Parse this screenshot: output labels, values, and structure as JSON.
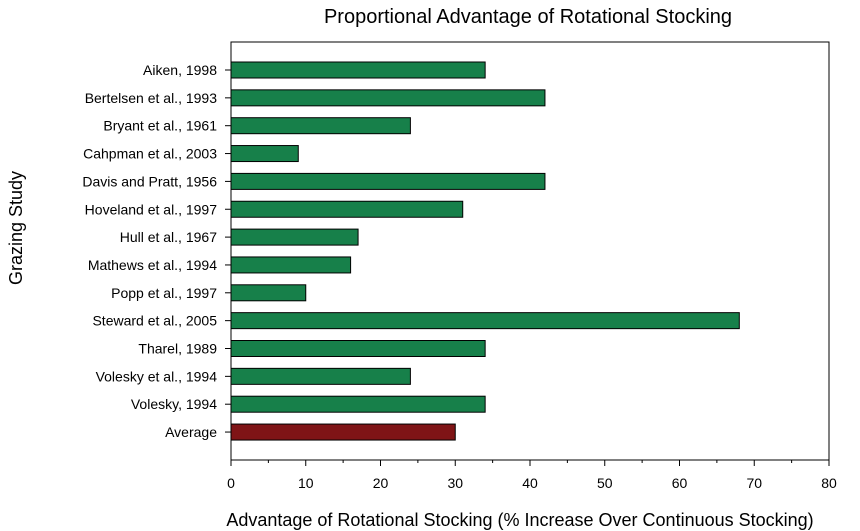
{
  "chart_data": {
    "type": "bar",
    "orientation": "horizontal",
    "title": "Proportional Advantage of Rotational Stocking",
    "xlabel": "Advantage of Rotational Stocking (% Increase Over Continuous Stocking)",
    "ylabel": "Grazing Study",
    "xlim": [
      0,
      80
    ],
    "xticks": [
      "0",
      "10",
      "20",
      "30",
      "40",
      "50",
      "60",
      "70",
      "80"
    ],
    "grid": false,
    "legend": "none",
    "categories": [
      "Aiken, 1998",
      "Bertelsen et al., 1993",
      "Bryant et al., 1961",
      "Cahpman et al., 2003",
      "Davis and Pratt, 1956",
      "Hoveland et al., 1997",
      "Hull et al., 1967",
      "Mathews et al., 1994",
      "Popp et al., 1997",
      "Steward et al., 2005",
      "Tharel, 1989",
      "Volesky et al., 1994",
      "Volesky, 1994",
      "Average"
    ],
    "values": [
      34,
      42,
      24,
      9,
      42,
      31,
      17,
      16,
      10,
      68,
      34,
      24,
      34,
      30
    ],
    "colors": {
      "study_bar": "#17804a",
      "average_bar": "#7f1416",
      "bar_edge": "#000000"
    }
  }
}
